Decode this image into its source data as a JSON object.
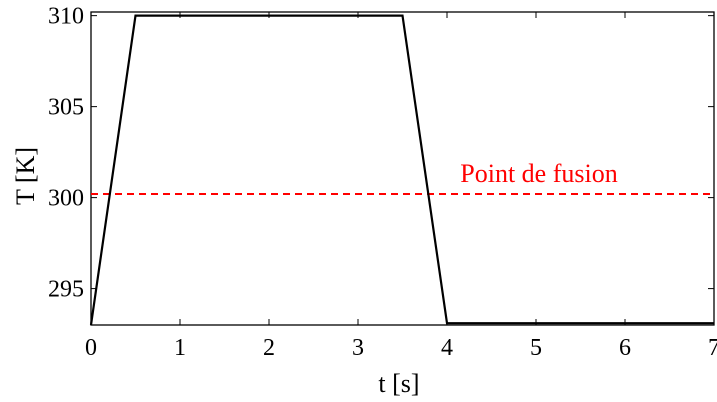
{
  "chart_data": {
    "type": "line",
    "xlabel": "t [s]",
    "ylabel": "T [K]",
    "xlim": [
      0,
      7
    ],
    "ylim": [
      293,
      310.2
    ],
    "xticks": [
      "0",
      "1",
      "2",
      "3",
      "4",
      "5",
      "6",
      "7"
    ],
    "yticks": [
      "295",
      "300",
      "305",
      "310"
    ],
    "grid": false,
    "series": [
      {
        "color": "#000000",
        "style": "solid",
        "x": [
          0,
          0.5,
          3.5,
          4.0,
          7.0
        ],
        "y": [
          293.0,
          310.0,
          310.0,
          293.1,
          293.1
        ]
      }
    ],
    "reference_lines": [
      {
        "y": 300.2,
        "color": "#ff0000",
        "style": "dashed",
        "label": "Point de fusion"
      }
    ]
  }
}
